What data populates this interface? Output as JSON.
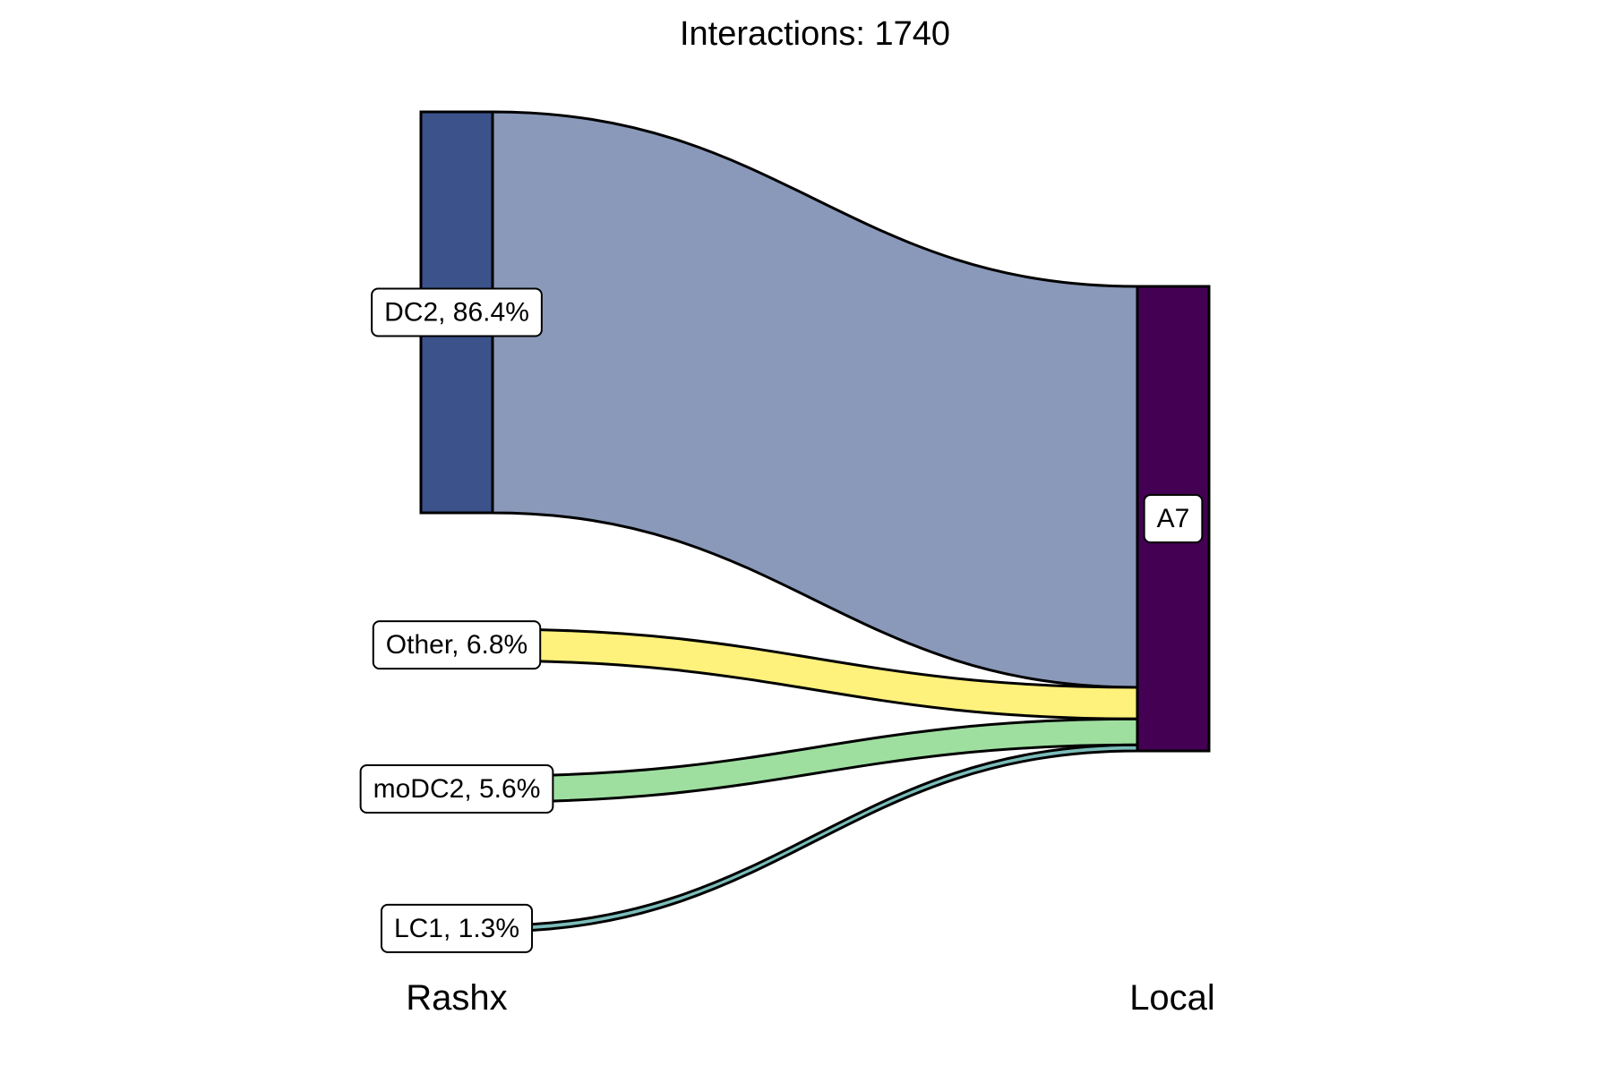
{
  "chart_data": {
    "type": "sankey",
    "title": "Interactions: 1740",
    "axes": [
      "Rashx",
      "Local"
    ],
    "sources": [
      {
        "name": "DC2",
        "label": "DC2, 86.4%",
        "share": 86.4,
        "color": "#3B528B",
        "flow_color": "#8A99B9"
      },
      {
        "name": "Other",
        "label": "Other, 6.8%",
        "share": 6.8,
        "color": "#FDE725",
        "flow_color": "#FEF17C"
      },
      {
        "name": "moDC2",
        "label": "moDC2, 5.6%",
        "share": 5.6,
        "color": "#5EC962",
        "flow_color": "#9EDFA0"
      },
      {
        "name": "LC1",
        "label": "LC1, 1.3%",
        "share": 1.3,
        "color": "#21918C",
        "flow_color": "#7ABDBA"
      }
    ],
    "targets": [
      {
        "name": "A7",
        "label": "A7",
        "share": 100,
        "color": "#440154"
      }
    ],
    "flows": [
      {
        "from": "DC2",
        "to": "A7",
        "share": 86.4
      },
      {
        "from": "Other",
        "to": "A7",
        "share": 6.8
      },
      {
        "from": "moDC2",
        "to": "A7",
        "share": 5.6
      },
      {
        "from": "LC1",
        "to": "A7",
        "share": 1.3
      }
    ]
  }
}
